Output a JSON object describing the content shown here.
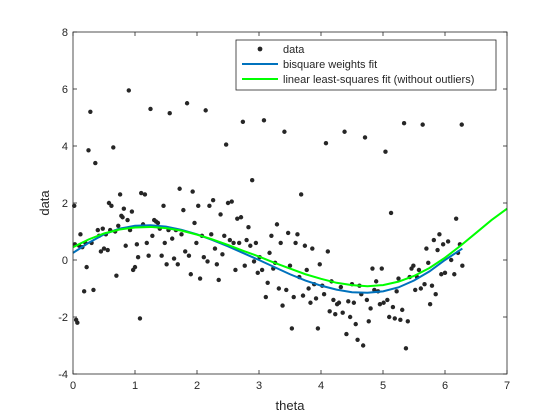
{
  "chart_data": {
    "type": "scatter",
    "xlabel": "theta",
    "ylabel": "data",
    "xlim": [
      0,
      7
    ],
    "ylim": [
      -4,
      8
    ],
    "xticks": [
      "0",
      "1",
      "2",
      "3",
      "4",
      "5",
      "6",
      "7"
    ],
    "yticks": [
      "-4",
      "-2",
      "0",
      "2",
      "4",
      "6",
      "8"
    ],
    "grid": false,
    "legend_position": "top-right",
    "series": [
      {
        "name": "data",
        "kind": "points",
        "color": "#262626",
        "points": [
          [
            0.02,
            1.9
          ],
          [
            0.03,
            0.55
          ],
          [
            0.05,
            -2.1
          ],
          [
            0.07,
            -2.2
          ],
          [
            0.1,
            0.5
          ],
          [
            0.12,
            0.9
          ],
          [
            0.15,
            0.45
          ],
          [
            0.18,
            -1.1
          ],
          [
            0.2,
            0.6
          ],
          [
            0.22,
            -0.25
          ],
          [
            0.25,
            3.85
          ],
          [
            0.28,
            5.2
          ],
          [
            0.3,
            0.6
          ],
          [
            0.33,
            -1.05
          ],
          [
            0.36,
            3.4
          ],
          [
            0.4,
            1.05
          ],
          [
            0.42,
            0.85
          ],
          [
            0.45,
            0.3
          ],
          [
            0.48,
            1.1
          ],
          [
            0.5,
            0.4
          ],
          [
            0.53,
            0.9
          ],
          [
            0.56,
            0.35
          ],
          [
            0.58,
            2.0
          ],
          [
            0.6,
            1.05
          ],
          [
            0.62,
            1.9
          ],
          [
            0.65,
            3.95
          ],
          [
            0.68,
            1.0
          ],
          [
            0.7,
            -0.55
          ],
          [
            0.73,
            1.2
          ],
          [
            0.76,
            2.3
          ],
          [
            0.78,
            1.55
          ],
          [
            0.8,
            1.5
          ],
          [
            0.82,
            1.8
          ],
          [
            0.85,
            0.5
          ],
          [
            0.88,
            1.4
          ],
          [
            0.9,
            5.95
          ],
          [
            0.92,
            1.05
          ],
          [
            0.95,
            1.7
          ],
          [
            0.97,
            -0.35
          ],
          [
            1.0,
            -0.25
          ],
          [
            1.03,
            0.55
          ],
          [
            1.05,
            0.1
          ],
          [
            1.08,
            -2.05
          ],
          [
            1.1,
            2.35
          ],
          [
            1.13,
            1.25
          ],
          [
            1.16,
            2.3
          ],
          [
            1.19,
            0.6
          ],
          [
            1.22,
            0.15
          ],
          [
            1.25,
            5.3
          ],
          [
            1.28,
            0.85
          ],
          [
            1.31,
            1.4
          ],
          [
            1.34,
            1.35
          ],
          [
            1.37,
            1.3
          ],
          [
            1.4,
            1.1
          ],
          [
            1.43,
            0.15
          ],
          [
            1.46,
            1.9
          ],
          [
            1.48,
            0.6
          ],
          [
            1.51,
            -0.15
          ],
          [
            1.54,
            1.05
          ],
          [
            1.56,
            5.15
          ],
          [
            1.6,
            0.75
          ],
          [
            1.63,
            0.05
          ],
          [
            1.66,
            1.05
          ],
          [
            1.69,
            -0.15
          ],
          [
            1.72,
            2.5
          ],
          [
            1.75,
            0.9
          ],
          [
            1.78,
            1.75
          ],
          [
            1.81,
            0.3
          ],
          [
            1.84,
            5.5
          ],
          [
            1.87,
            0.15
          ],
          [
            1.9,
            -0.5
          ],
          [
            1.93,
            2.4
          ],
          [
            1.96,
            1.3
          ],
          [
            1.99,
            0.6
          ],
          [
            2.02,
            1.9
          ],
          [
            2.05,
            -0.65
          ],
          [
            2.08,
            0.85
          ],
          [
            2.11,
            0.1
          ],
          [
            2.14,
            5.25
          ],
          [
            2.17,
            -0.05
          ],
          [
            2.2,
            1.9
          ],
          [
            2.23,
            0.9
          ],
          [
            2.26,
            2.1
          ],
          [
            2.29,
            0.4
          ],
          [
            2.32,
            -0.15
          ],
          [
            2.35,
            -0.7
          ],
          [
            2.38,
            1.6
          ],
          [
            2.41,
            0.2
          ],
          [
            2.44,
            0.85
          ],
          [
            2.47,
            4.05
          ],
          [
            2.5,
            2.0
          ],
          [
            2.53,
            0.7
          ],
          [
            2.56,
            2.05
          ],
          [
            2.59,
            0.6
          ],
          [
            2.62,
            -0.35
          ],
          [
            2.65,
            1.45
          ],
          [
            2.68,
            0.6
          ],
          [
            2.71,
            1.5
          ],
          [
            2.74,
            4.85
          ],
          [
            2.77,
            -0.2
          ],
          [
            2.8,
            0.7
          ],
          [
            2.83,
            1.15
          ],
          [
            2.86,
            0.5
          ],
          [
            2.89,
            2.8
          ],
          [
            2.92,
            -0.05
          ],
          [
            2.95,
            0.6
          ],
          [
            2.98,
            -0.45
          ],
          [
            3.01,
            0.1
          ],
          [
            3.05,
            -0.35
          ],
          [
            3.08,
            4.9
          ],
          [
            3.11,
            -1.3
          ],
          [
            3.14,
            -0.8
          ],
          [
            3.17,
            0.25
          ],
          [
            3.2,
            0.85
          ],
          [
            3.23,
            -0.3
          ],
          [
            3.26,
            -0.1
          ],
          [
            3.29,
            1.25
          ],
          [
            3.32,
            -1.0
          ],
          [
            3.35,
            0.6
          ],
          [
            3.38,
            -1.6
          ],
          [
            3.41,
            4.5
          ],
          [
            3.44,
            -1.05
          ],
          [
            3.47,
            0.95
          ],
          [
            3.5,
            -0.2
          ],
          [
            3.53,
            -2.4
          ],
          [
            3.56,
            -1.3
          ],
          [
            3.59,
            0.6
          ],
          [
            3.62,
            0.9
          ],
          [
            3.65,
            -0.6
          ],
          [
            3.68,
            2.3
          ],
          [
            3.71,
            -1.25
          ],
          [
            3.74,
            0.5
          ],
          [
            3.77,
            -0.35
          ],
          [
            3.8,
            -1.0
          ],
          [
            3.83,
            -1.5
          ],
          [
            3.86,
            0.4
          ],
          [
            3.89,
            -0.85
          ],
          [
            3.92,
            -1.35
          ],
          [
            3.95,
            -2.4
          ],
          [
            3.98,
            -0.15
          ],
          [
            4.02,
            -0.9
          ],
          [
            4.05,
            -1.2
          ],
          [
            4.08,
            4.1
          ],
          [
            4.11,
            0.3
          ],
          [
            4.14,
            -1.8
          ],
          [
            4.17,
            -0.75
          ],
          [
            4.2,
            -1.4
          ],
          [
            4.23,
            -1.9
          ],
          [
            4.26,
            -1.55
          ],
          [
            4.29,
            -1.5
          ],
          [
            4.32,
            -0.95
          ],
          [
            4.35,
            -1.85
          ],
          [
            4.38,
            4.5
          ],
          [
            4.41,
            -2.6
          ],
          [
            4.44,
            -1.45
          ],
          [
            4.47,
            -2.0
          ],
          [
            4.5,
            -0.85
          ],
          [
            4.53,
            -1.5
          ],
          [
            4.56,
            -2.25
          ],
          [
            4.59,
            -2.8
          ],
          [
            4.62,
            -0.9
          ],
          [
            4.65,
            -1.2
          ],
          [
            4.68,
            -3.0
          ],
          [
            4.71,
            4.3
          ],
          [
            4.74,
            -1.4
          ],
          [
            4.77,
            -2.15
          ],
          [
            4.8,
            -1.7
          ],
          [
            4.83,
            -0.3
          ],
          [
            4.86,
            -1.05
          ],
          [
            4.89,
            -0.75
          ],
          [
            4.92,
            -1.1
          ],
          [
            4.95,
            -1.55
          ],
          [
            4.98,
            -0.3
          ],
          [
            5.01,
            -1.5
          ],
          [
            5.04,
            3.8
          ],
          [
            5.07,
            -1.4
          ],
          [
            5.1,
            -2.0
          ],
          [
            5.13,
            1.65
          ],
          [
            5.16,
            -1.65
          ],
          [
            5.19,
            -2.05
          ],
          [
            5.22,
            -1.1
          ],
          [
            5.25,
            -0.65
          ],
          [
            5.28,
            -2.1
          ],
          [
            5.31,
            -1.75
          ],
          [
            5.34,
            4.8
          ],
          [
            5.37,
            -3.1
          ],
          [
            5.4,
            -2.15
          ],
          [
            5.43,
            -0.6
          ],
          [
            5.46,
            -0.3
          ],
          [
            5.49,
            -0.2
          ],
          [
            5.52,
            -1.05
          ],
          [
            5.55,
            -0.6
          ],
          [
            5.58,
            -0.35
          ],
          [
            5.61,
            -1.0
          ],
          [
            5.64,
            4.75
          ],
          [
            5.67,
            -0.85
          ],
          [
            5.7,
            0.4
          ],
          [
            5.73,
            -0.1
          ],
          [
            5.76,
            -1.55
          ],
          [
            5.79,
            -0.9
          ],
          [
            5.82,
            0.7
          ],
          [
            5.85,
            -1.2
          ],
          [
            5.88,
            0.35
          ],
          [
            5.91,
            0.9
          ],
          [
            5.94,
            -0.5
          ],
          [
            5.97,
            0.55
          ],
          [
            6.0,
            -0.45
          ],
          [
            6.05,
            0.65
          ],
          [
            6.1,
            0.0
          ],
          [
            6.15,
            -0.5
          ],
          [
            6.18,
            1.45
          ],
          [
            6.21,
            0.25
          ],
          [
            6.24,
            0.55
          ],
          [
            6.27,
            4.75
          ],
          [
            6.28,
            -0.2
          ]
        ]
      },
      {
        "name": "bisquare weights fit",
        "kind": "line",
        "color": "#0072BD",
        "x": [
          0.0,
          0.25,
          0.5,
          0.75,
          1.0,
          1.25,
          1.5,
          1.75,
          2.0,
          2.25,
          2.5,
          2.75,
          3.0,
          3.25,
          3.5,
          3.75,
          4.0,
          4.25,
          4.5,
          4.75,
          5.0,
          5.25,
          5.5,
          5.75,
          6.0,
          6.28
        ],
        "y": [
          0.25,
          0.6,
          0.9,
          1.1,
          1.2,
          1.22,
          1.17,
          1.06,
          0.9,
          0.7,
          0.48,
          0.24,
          0.0,
          -0.25,
          -0.5,
          -0.72,
          -0.9,
          -1.04,
          -1.13,
          -1.15,
          -1.1,
          -0.96,
          -0.72,
          -0.4,
          0.0,
          0.4
        ]
      },
      {
        "name": "linear least-squares fit (without outliers)",
        "kind": "line",
        "color": "#00FF00",
        "x": [
          0.0,
          0.25,
          0.5,
          0.75,
          1.0,
          1.25,
          1.5,
          1.75,
          2.0,
          2.25,
          2.5,
          2.75,
          3.0,
          3.25,
          3.5,
          3.75,
          4.0,
          4.25,
          4.5,
          4.75,
          5.0,
          5.25,
          5.5,
          5.75,
          6.0,
          6.25,
          6.5,
          6.75,
          7.0
        ],
        "y": [
          0.45,
          0.72,
          0.93,
          1.07,
          1.14,
          1.16,
          1.12,
          1.03,
          0.89,
          0.72,
          0.53,
          0.32,
          0.12,
          -0.1,
          -0.3,
          -0.5,
          -0.66,
          -0.8,
          -0.88,
          -0.92,
          -0.88,
          -0.76,
          -0.56,
          -0.28,
          0.08,
          0.5,
          0.95,
          1.4,
          1.8
        ]
      }
    ]
  }
}
